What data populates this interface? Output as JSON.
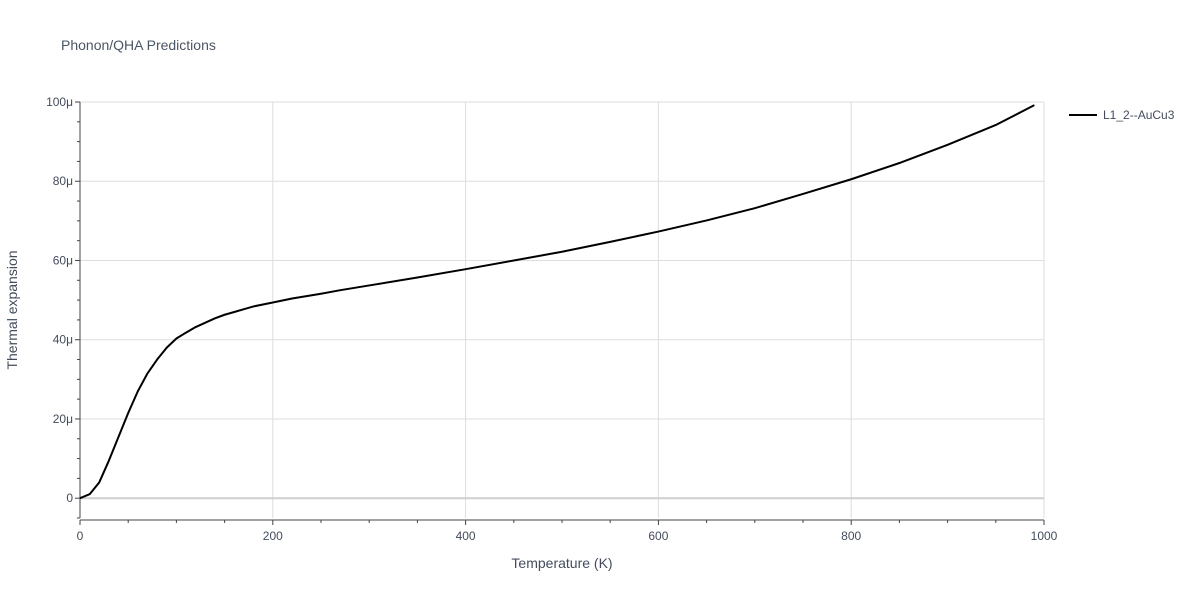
{
  "chart_data": {
    "type": "line",
    "title": "Phonon/QHA Predictions",
    "xlabel": "Temperature (K)",
    "ylabel": "Thermal expansion",
    "xlim": [
      0,
      1000
    ],
    "ylim": [
      -5e-06,
      0.0001
    ],
    "grid": true,
    "legend_position": "top-right",
    "x_ticks": [
      {
        "value": 0,
        "label": "0"
      },
      {
        "value": 200,
        "label": "200"
      },
      {
        "value": 400,
        "label": "400"
      },
      {
        "value": 600,
        "label": "600"
      },
      {
        "value": 800,
        "label": "800"
      },
      {
        "value": 1000,
        "label": "1000"
      }
    ],
    "y_ticks": [
      {
        "value": 0,
        "label": "0"
      },
      {
        "value": 2e-05,
        "label": "20μ"
      },
      {
        "value": 4e-05,
        "label": "40μ"
      },
      {
        "value": 6e-05,
        "label": "60μ"
      },
      {
        "value": 8e-05,
        "label": "80μ"
      },
      {
        "value": 0.0001,
        "label": "100μ"
      }
    ],
    "x_minor_step": 50,
    "y_minor_step": 5e-06,
    "series": [
      {
        "name": "L1_2--AuCu3",
        "color": "#000000",
        "x": [
          0,
          10,
          20,
          30,
          40,
          50,
          60,
          70,
          80,
          90,
          100,
          110,
          120,
          130,
          140,
          150,
          160,
          170,
          180,
          200,
          220,
          250,
          270,
          300,
          350,
          400,
          450,
          500,
          550,
          600,
          650,
          700,
          750,
          800,
          850,
          900,
          950,
          990
        ],
        "y": [
          0,
          1e-06,
          4e-06,
          9.5e-06,
          1.55e-05,
          2.15e-05,
          2.7e-05,
          3.15e-05,
          3.5e-05,
          3.8e-05,
          4.03e-05,
          4.18e-05,
          4.32e-05,
          4.43e-05,
          4.54e-05,
          4.63e-05,
          4.7e-05,
          4.77e-05,
          4.84e-05,
          4.94e-05,
          5.04e-05,
          5.16e-05,
          5.25e-05,
          5.37e-05,
          5.57e-05,
          5.78e-05,
          6e-05,
          6.22e-05,
          6.47e-05,
          6.73e-05,
          7.01e-05,
          7.32e-05,
          7.68e-05,
          8.05e-05,
          8.46e-05,
          8.92e-05,
          9.42e-05,
          9.92e-05
        ]
      }
    ]
  }
}
